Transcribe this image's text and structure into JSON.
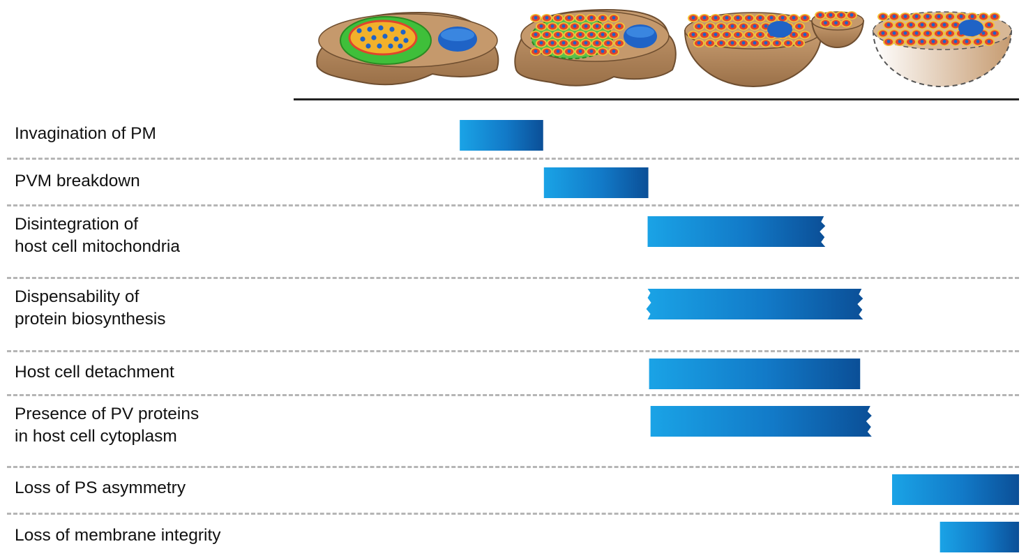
{
  "stages": [
    {
      "name": "stage-1"
    },
    {
      "name": "stage-2"
    },
    {
      "name": "stage-3"
    },
    {
      "name": "stage-4"
    }
  ],
  "rows": [
    {
      "label_lines": [
        "Invagination of PM"
      ],
      "bar": {
        "start": 0.229,
        "end": 0.344,
        "left_cut": false,
        "right_cut": false
      }
    },
    {
      "label_lines": [
        "PVM breakdown"
      ],
      "bar": {
        "start": 0.345,
        "end": 0.489,
        "left_cut": false,
        "right_cut": false
      }
    },
    {
      "label_lines": [
        "Disintegration of",
        "host cell mitochondria"
      ],
      "bar": {
        "start": 0.488,
        "end": 0.731,
        "left_cut": false,
        "right_cut": true
      }
    },
    {
      "label_lines": [
        "Dispensability of",
        "protein biosynthesis"
      ],
      "bar": {
        "start": 0.488,
        "end": 0.783,
        "left_cut": true,
        "right_cut": true
      }
    },
    {
      "label_lines": [
        "Host cell detachment"
      ],
      "bar": {
        "start": 0.49,
        "end": 0.781,
        "left_cut": false,
        "right_cut": false
      }
    },
    {
      "label_lines": [
        "Presence of PV proteins",
        "in host cell cytoplasm"
      ],
      "bar": {
        "start": 0.492,
        "end": 0.795,
        "left_cut": false,
        "right_cut": true
      }
    },
    {
      "label_lines": [
        "Loss of PS asymmetry"
      ],
      "bar": {
        "start": 0.825,
        "end": 1.0,
        "left_cut": false,
        "right_cut": false
      }
    },
    {
      "label_lines": [
        "Loss of membrane integrity"
      ],
      "bar": {
        "start": 0.891,
        "end": 1.0,
        "left_cut": false,
        "right_cut": false
      }
    }
  ],
  "colors": {
    "bar_light": "#1aa3e6",
    "bar_dark": "#0b4f97",
    "cell": "#b0865c",
    "cell_dark": "#6e4e30",
    "nucleus": "#1f63c6",
    "vacuole_green": "#3fbf3a",
    "merozoite": "#e2452b",
    "merozoite_rim": "#f2c23a"
  }
}
